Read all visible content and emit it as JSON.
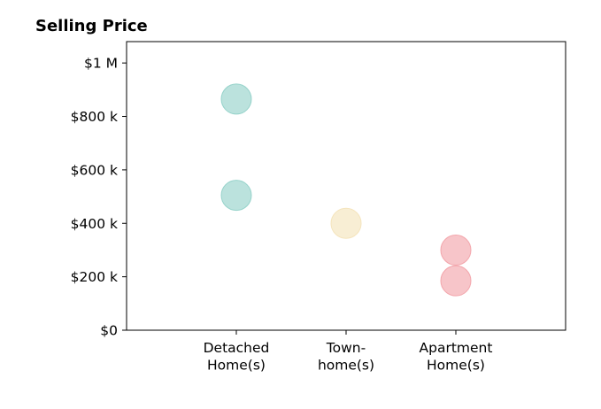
{
  "chart_data": {
    "type": "scatter",
    "title": "Selling Price",
    "xlabel": "",
    "ylabel": "",
    "categories": [
      [
        "Detached",
        "Home(s)"
      ],
      [
        "Town-",
        "home(s)"
      ],
      [
        "Apartment",
        "Home(s)"
      ]
    ],
    "y_ticks": [
      {
        "value": 0,
        "label": "$0"
      },
      {
        "value": 200000,
        "label": "$200 k"
      },
      {
        "value": 400000,
        "label": "$400 k"
      },
      {
        "value": 600000,
        "label": "$600 k"
      },
      {
        "value": 800000,
        "label": "$800 k"
      },
      {
        "value": 1000000,
        "label": "$1 M"
      }
    ],
    "ylim": [
      0,
      1080000
    ],
    "xlim": [
      -1,
      3
    ],
    "grid": false,
    "points": [
      {
        "category": 0,
        "value": 865000,
        "color": "#8ecfc7"
      },
      {
        "category": 0,
        "value": 505000,
        "color": "#8ecfc7"
      },
      {
        "category": 1,
        "value": 400000,
        "color": "#f4e2b8"
      },
      {
        "category": 2,
        "value": 300000,
        "color": "#f29ea5"
      },
      {
        "category": 2,
        "value": 185000,
        "color": "#f29ea5"
      }
    ]
  }
}
